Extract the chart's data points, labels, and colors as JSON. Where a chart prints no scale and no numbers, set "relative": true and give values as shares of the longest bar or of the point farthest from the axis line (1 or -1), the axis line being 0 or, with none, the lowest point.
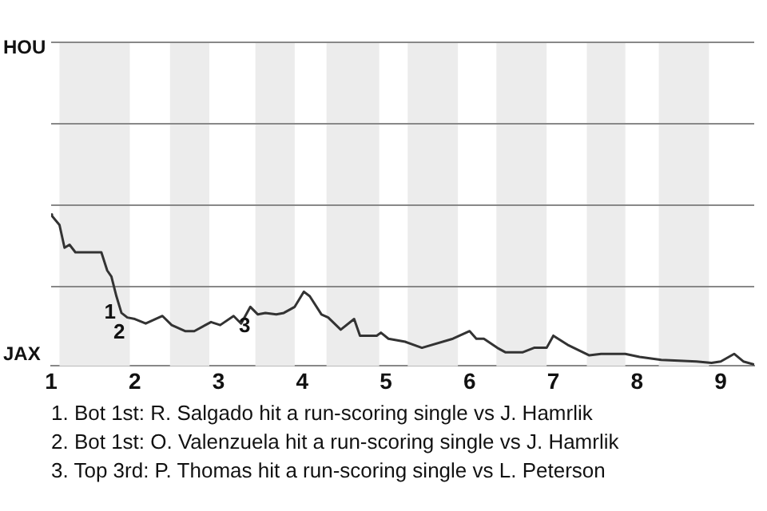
{
  "chart_data": {
    "type": "line",
    "relative": true,
    "x": [
      1,
      1.01,
      1.1,
      1.16,
      1.22,
      1.29,
      1.6,
      1.67,
      1.72,
      1.78,
      1.84,
      1.91,
      2,
      2.13,
      2.33,
      2.44,
      2.6,
      2.71,
      2.91,
      3.02,
      3.18,
      3.27,
      3.38,
      3.47,
      3.56,
      3.69,
      3.78,
      3.91,
      4.02,
      4.09,
      4.23,
      4.31,
      4.46,
      4.62,
      4.69,
      4.89,
      4.94,
      5.03,
      5.23,
      5.43,
      5.8,
      6,
      6.08,
      6.17,
      6.33,
      6.43,
      6.63,
      6.77,
      6.92,
      7,
      7.17,
      7.43,
      7.57,
      7.86,
      8.03,
      8.29,
      8.71,
      8.89,
      9,
      9.16,
      9.27,
      9.4
    ],
    "series": [
      {
        "color": "#333333",
        "values": [
          1,
          0.99,
          0.93,
          0.78,
          0.8,
          0.75,
          0.75,
          0.63,
          0.59,
          0.46,
          0.35,
          0.32,
          0.31,
          0.28,
          0.33,
          0.27,
          0.23,
          0.23,
          0.29,
          0.27,
          0.33,
          0.28,
          0.39,
          0.34,
          0.35,
          0.34,
          0.35,
          0.39,
          0.49,
          0.46,
          0.34,
          0.32,
          0.24,
          0.31,
          0.2,
          0.2,
          0.22,
          0.18,
          0.16,
          0.12,
          0.18,
          0.23,
          0.18,
          0.18,
          0.12,
          0.09,
          0.09,
          0.12,
          0.12,
          0.2,
          0.14,
          0.07,
          0.08,
          0.08,
          0.06,
          0.04,
          0.03,
          0.02,
          0.03,
          0.08,
          0.03,
          0.01
        ]
      }
    ],
    "xlim": [
      1,
      9.4
    ],
    "xticks": [
      1,
      2,
      3,
      4,
      5,
      6,
      7,
      8,
      9
    ],
    "legend": false,
    "marker": "none",
    "line_style": "solid",
    "ref_lines": [
      {
        "axis": "y",
        "value": 0.53,
        "color": "#888888"
      },
      {
        "axis": "y",
        "value": 1.07,
        "color": "#888888"
      },
      {
        "axis": "y",
        "value": 1.6,
        "color": "#888888"
      },
      {
        "axis": "y",
        "value": 2.14,
        "color": "#888888"
      }
    ],
    "bands": [
      {
        "axis": "x",
        "from": 1.1,
        "to": 1.94,
        "color": "#ececec"
      },
      {
        "axis": "x",
        "from": 2.42,
        "to": 2.89,
        "color": "#ececec"
      },
      {
        "axis": "x",
        "from": 3.44,
        "to": 3.91,
        "color": "#ececec"
      },
      {
        "axis": "x",
        "from": 4.29,
        "to": 4.92,
        "color": "#ececec"
      },
      {
        "axis": "x",
        "from": 5.26,
        "to": 5.86,
        "color": "#ececec"
      },
      {
        "axis": "x",
        "from": 6.32,
        "to": 6.92,
        "color": "#ececec"
      },
      {
        "axis": "x",
        "from": 7.4,
        "to": 7.86,
        "color": "#ececec"
      },
      {
        "axis": "x",
        "from": 8.26,
        "to": 8.86,
        "color": "#ececec"
      }
    ],
    "annotations": [
      {
        "text": "1",
        "x": 1.81,
        "y": 0.45
      },
      {
        "text": "2",
        "x": 1.92,
        "y": 0.32
      },
      {
        "text": "3",
        "x": 3.42,
        "y": 0.36
      },
      "HOU",
      "JAX",
      "1. Bot 1st: R. Salgado hit a run-scoring single vs J. Hamrlik",
      "2. Bot 1st: O. Valenzuela hit a run-scoring single vs J. Hamrlik",
      "3. Top 3rd: P. Thomas hit a run-scoring single vs L. Peterson"
    ]
  }
}
